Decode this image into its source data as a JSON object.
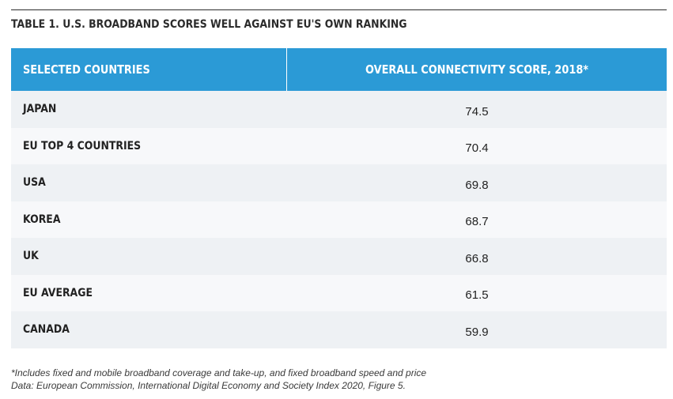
{
  "title": "TABLE 1. U.S. BROADBAND SCORES WELL AGAINST EU'S OWN RANKING",
  "table": {
    "headers": {
      "country": "SELECTED COUNTRIES",
      "score": "OVERALL CONNECTIVITY SCORE, 2018*"
    },
    "rows": [
      {
        "country": "JAPAN",
        "score": "74.5"
      },
      {
        "country": "EU TOP 4 COUNTRIES",
        "score": "70.4"
      },
      {
        "country": "USA",
        "score": "69.8"
      },
      {
        "country": "KOREA",
        "score": "68.7"
      },
      {
        "country": "UK",
        "score": "66.8"
      },
      {
        "country": "EU AVERAGE",
        "score": "61.5"
      },
      {
        "country": "CANADA",
        "score": "59.9"
      }
    ]
  },
  "footnote": {
    "line1": "*Includes fixed and mobile broadband coverage and take-up, and fixed broadband speed and price",
    "line2": "Data: European Commission, International Digital Economy and Society Index 2020, Figure 5."
  },
  "colors": {
    "header_bg": "#2b9ad6",
    "row_odd": "#eef1f4",
    "row_even": "#f7f8fa"
  }
}
